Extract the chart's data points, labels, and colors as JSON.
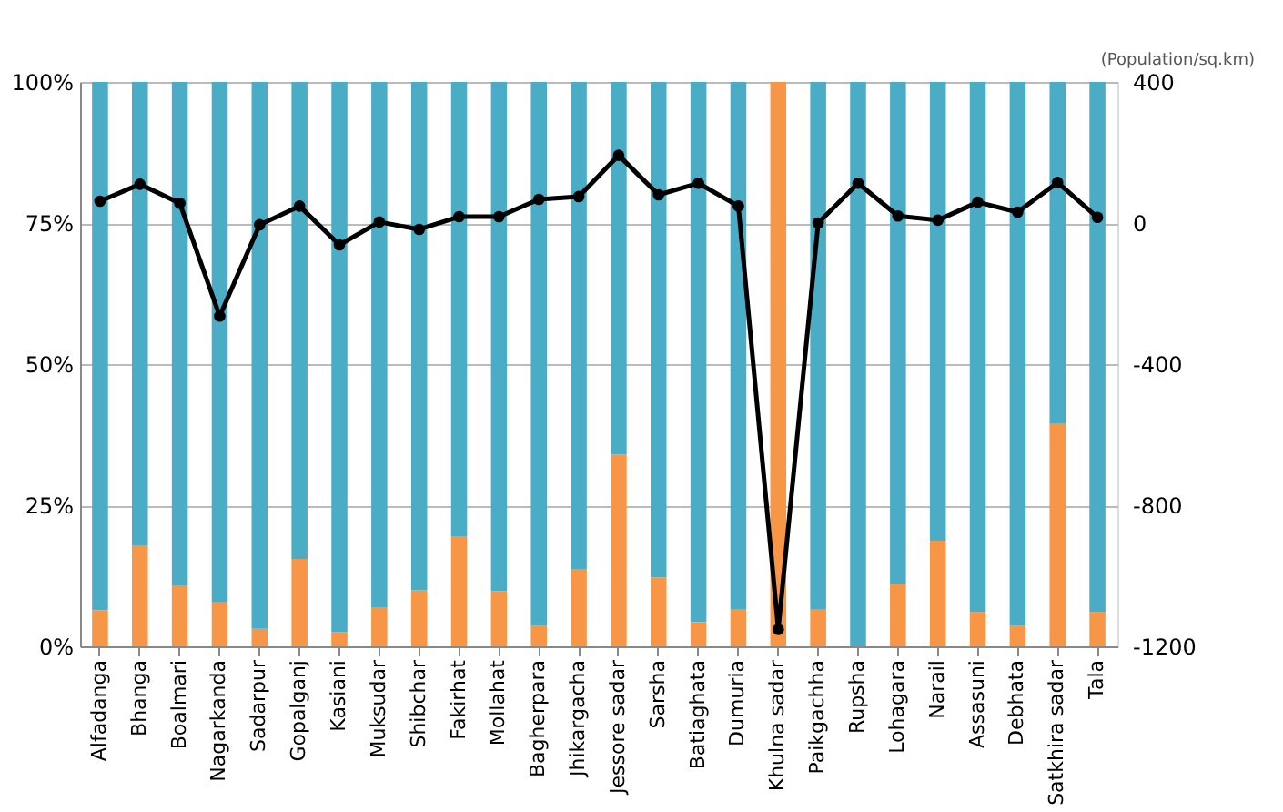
{
  "chart_data": {
    "type": "bar",
    "stacked": true,
    "y2label": "(Population/sq.km)",
    "categories": [
      "Alfadanga",
      "Bhanga",
      "Boalmari",
      "Nagarkanda",
      "Sadarpur",
      "Gopalganj",
      "Kasiani",
      "Muksudar",
      "Shibchar",
      "Fakirhat",
      "Mollahat",
      "Bagherpara",
      "Jhikargacha",
      "Jessore sadar",
      "Sarsha",
      "Batiaghata",
      "Dumuria",
      "Khulna sadar",
      "Paikgachha",
      "Rupsha",
      "Lohagara",
      "Narail",
      "Assasuni",
      "Debhata",
      "Satkhira sadar",
      "Tala"
    ],
    "series": [
      {
        "color": "#f79646",
        "values": [
          6.4,
          17.9,
          10.7,
          7.8,
          3.1,
          15.5,
          2.5,
          6.8,
          9.9,
          19.4,
          9.8,
          3.7,
          13.6,
          34.0,
          12.2,
          4.3,
          6.5,
          100,
          6.5,
          0,
          11.1,
          18.7,
          6.1,
          3.7,
          39.5,
          6.1
        ]
      },
      {
        "color": "#4bacc6",
        "values": [
          93.6,
          82.1,
          89.3,
          92.2,
          96.9,
          84.5,
          97.5,
          93.2,
          90.1,
          80.6,
          90.2,
          96.3,
          86.4,
          66.0,
          87.8,
          95.7,
          93.5,
          0,
          93.5,
          100,
          88.9,
          81.3,
          93.9,
          96.3,
          60.5,
          93.9
        ]
      },
      {
        "type": "line",
        "axis": "y2",
        "color": "#000000",
        "marker": "circle",
        "line_style": "solid",
        "values": [
          62,
          110,
          56,
          -264,
          -5,
          48,
          -62,
          3,
          -18,
          18,
          18,
          67,
          75,
          192,
          80,
          113,
          48,
          -1152,
          0,
          113,
          20,
          8,
          59,
          31,
          115,
          16
        ]
      }
    ],
    "ylim": [
      0,
      100
    ],
    "yticks": [
      {
        "value": 0,
        "label": "0%"
      },
      {
        "value": 25,
        "label": "25%"
      },
      {
        "value": 50,
        "label": "50%"
      },
      {
        "value": 75,
        "label": "75%"
      },
      {
        "value": 100,
        "label": "100%"
      }
    ],
    "y2lim": [
      -1200,
      400
    ],
    "y2ticks": [
      -1200,
      -800,
      -400,
      0,
      400
    ],
    "grid": "y"
  }
}
